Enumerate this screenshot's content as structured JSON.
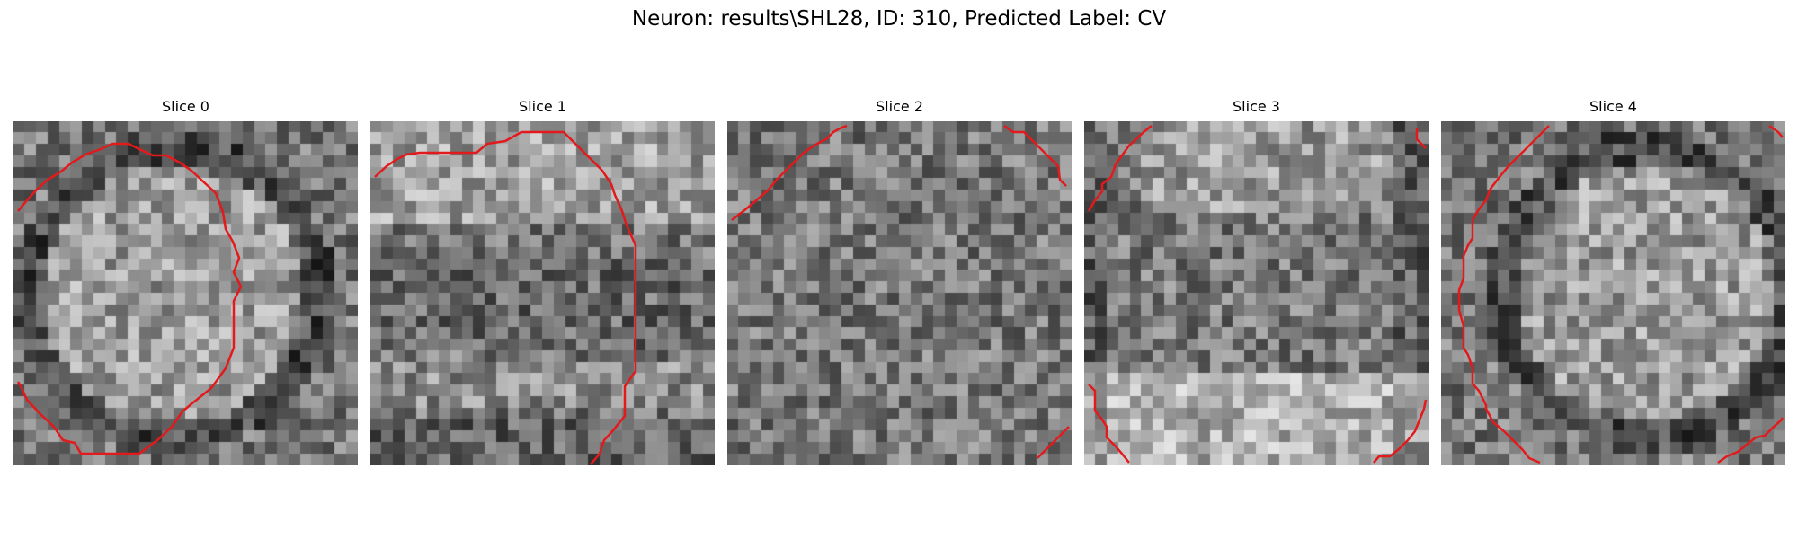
{
  "figure": {
    "title": "Neuron: results\\SHL28, ID: 310, Predicted Label: CV"
  },
  "panels": [
    {
      "title": "Slice 0",
      "seed": 11,
      "pattern": "ring"
    },
    {
      "title": "Slice 1",
      "seed": 23,
      "pattern": "band"
    },
    {
      "title": "Slice 2",
      "seed": 37,
      "pattern": "noise"
    },
    {
      "title": "Slice 3",
      "seed": 41,
      "pattern": "bright-bottom"
    },
    {
      "title": "Slice 4",
      "seed": 53,
      "pattern": "ring-right"
    }
  ],
  "colors": {
    "contour": "#e31a1c",
    "colormap": "gray"
  }
}
